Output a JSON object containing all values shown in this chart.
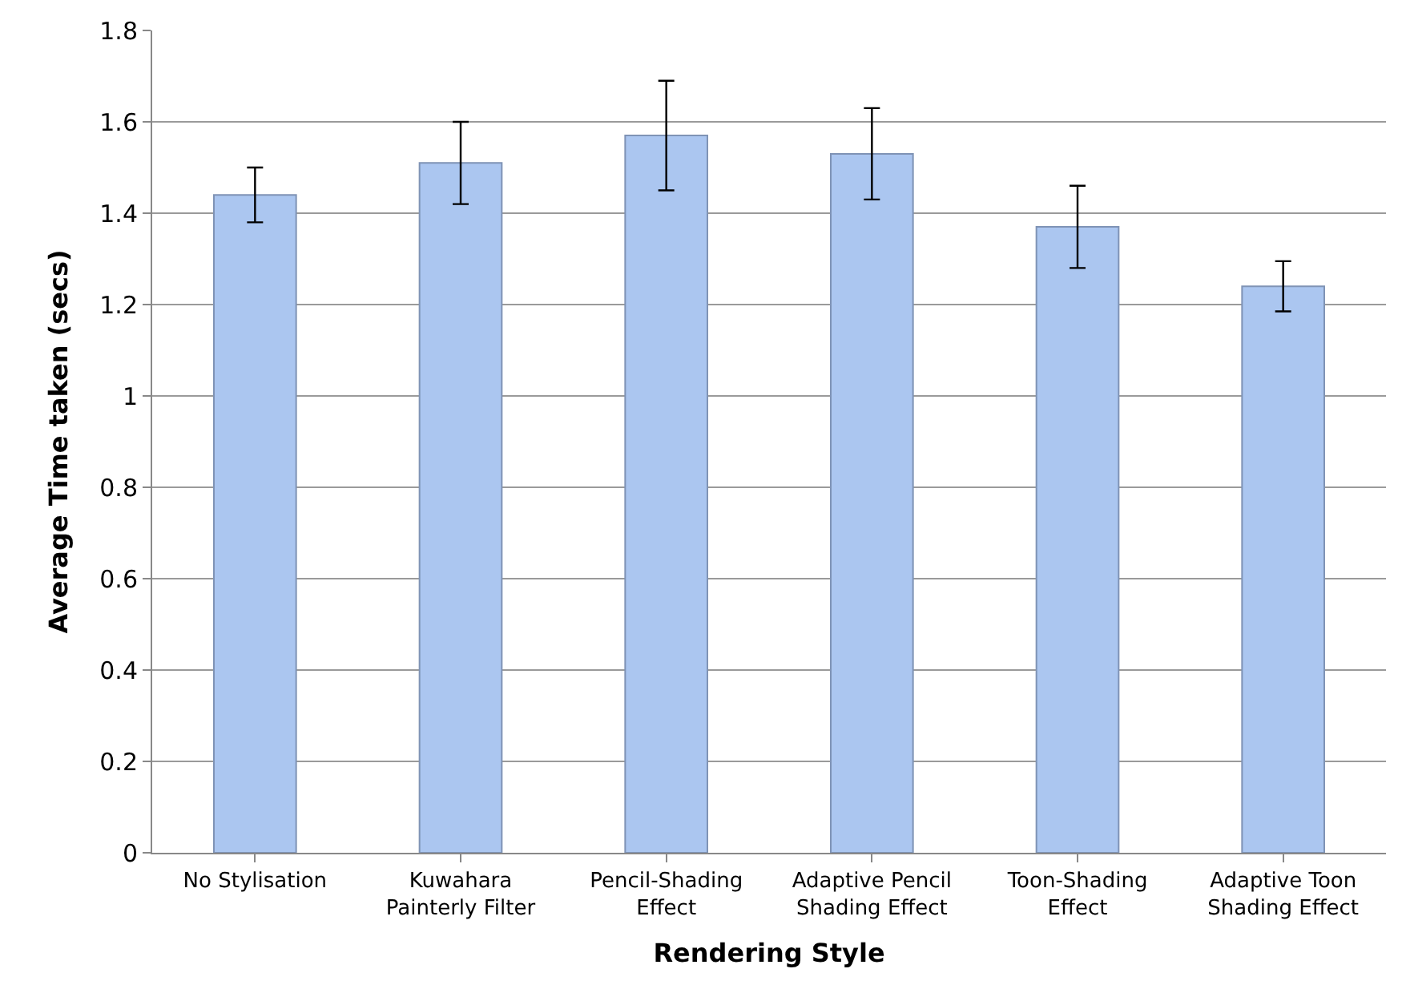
{
  "chart_data": {
    "type": "bar",
    "xlabel": "Rendering Style",
    "ylabel": "Average Time taken (secs)",
    "categories": [
      "No Stylisation",
      "Kuwahara\nPainterly Filter",
      "Pencil-Shading\nEffect",
      "Adaptive Pencil\nShading Effect",
      "Toon-Shading\nEffect",
      "Adaptive Toon\nShading Effect"
    ],
    "values": [
      1.44,
      1.51,
      1.57,
      1.53,
      1.37,
      1.24
    ],
    "errors": [
      0.06,
      0.09,
      0.12,
      0.1,
      0.09,
      0.055
    ],
    "color": "#abc6f0",
    "ylim": [
      0,
      1.8
    ],
    "yticks": [
      0,
      0.2,
      0.4,
      0.6,
      0.8,
      1,
      1.2,
      1.4,
      1.6,
      1.8
    ],
    "grid": "y"
  }
}
